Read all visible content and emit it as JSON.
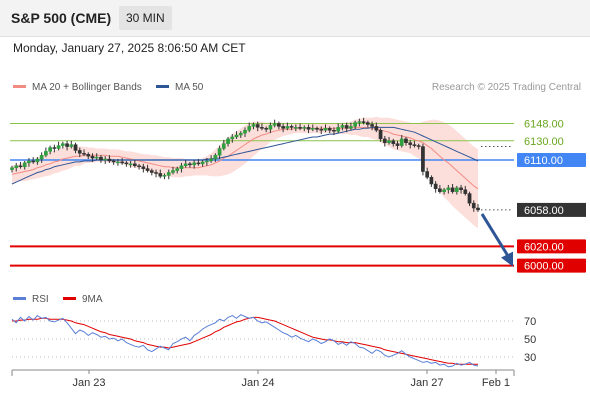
{
  "header": {
    "instrument": "S&P 500 (CME)",
    "timeframe": "30 MIN",
    "datetime": "Monday, January 27, 2025 8:06:50 AM CET"
  },
  "chart_data": [
    {
      "type": "candlestick",
      "legend": [
        {
          "label": "MA 20 + Bollinger Bands",
          "color": "#f28b82"
        },
        {
          "label": "MA 50",
          "color": "#2e5596"
        }
      ],
      "legend_placement": "top-left",
      "attribution": "Research © 2025 Trading Central",
      "levels": [
        {
          "value": 6148.0,
          "label": "6148.00",
          "type": "resistance",
          "color": "#8bc34a"
        },
        {
          "value": 6130.0,
          "label": "6130.00",
          "type": "resistance",
          "color": "#8bc34a"
        },
        {
          "value": 6110.0,
          "label": "6110.00",
          "type": "pivot",
          "color": "#4285f4"
        },
        {
          "value": 6058.0,
          "label": "6058.00",
          "type": "last",
          "color": "#333333"
        },
        {
          "value": 6020.0,
          "label": "6020.00",
          "type": "target",
          "color": "#e00000"
        },
        {
          "value": 6000.0,
          "label": "6000.00",
          "type": "target",
          "color": "#e00000"
        }
      ],
      "x_ticks": [
        "Jan 23",
        "Jan 24",
        "Jan 27",
        "Feb 1"
      ],
      "close": [
        6102,
        6104,
        6103,
        6107,
        6109,
        6108,
        6111,
        6115,
        6119,
        6123,
        6122,
        6125,
        6127,
        6124,
        6126,
        6120,
        6117,
        6116,
        6114,
        6112,
        6113,
        6110,
        6111,
        6109,
        6108,
        6108,
        6107,
        6106,
        6106,
        6104,
        6103,
        6101,
        6099,
        6097,
        6096,
        6093,
        6094,
        6097,
        6099,
        6101,
        6104,
        6106,
        6105,
        6107,
        6106,
        6108,
        6109,
        6111,
        6115,
        6122,
        6127,
        6132,
        6134,
        6136,
        6138,
        6141,
        6145,
        6147,
        6144,
        6143,
        6142,
        6146,
        6148,
        6145,
        6143,
        6145,
        6144,
        6144,
        6143,
        6144,
        6142,
        6143,
        6142,
        6141,
        6143,
        6141,
        6140,
        6144,
        6146,
        6143,
        6145,
        6149,
        6150,
        6149,
        6147,
        6145,
        6141,
        6132,
        6128,
        6130,
        6127,
        6125,
        6132,
        6128,
        6126,
        6125,
        6124,
        6098,
        6092,
        6085,
        6080,
        6077,
        6079,
        6081,
        6077,
        6081,
        6079,
        6075,
        6065,
        6060,
        6058
      ],
      "ma20": [
        6095,
        6096,
        6097,
        6098,
        6099,
        6100,
        6102,
        6103,
        6105,
        6106,
        6108,
        6109,
        6111,
        6112,
        6113,
        6114,
        6114,
        6115,
        6115,
        6115,
        6115,
        6115,
        6115,
        6114,
        6114,
        6114,
        6113,
        6112,
        6111,
        6110,
        6109,
        6108,
        6107,
        6106,
        6105,
        6104,
        6103,
        6103,
        6102,
        6102,
        6102,
        6102,
        6102,
        6102,
        6102,
        6103,
        6104,
        6105,
        6107,
        6109,
        6112,
        6114,
        6117,
        6120,
        6123,
        6126,
        6129,
        6132,
        6134,
        6136,
        6137,
        6139,
        6140,
        6141,
        6142,
        6142,
        6142,
        6143,
        6143,
        6143,
        6143,
        6143,
        6143,
        6143,
        6143,
        6143,
        6143,
        6143,
        6143,
        6143,
        6143,
        6144,
        6144,
        6144,
        6144,
        6143,
        6143,
        6141,
        6140,
        6139,
        6137,
        6136,
        6135,
        6134,
        6133,
        6131,
        6130,
        6128,
        6125,
        6122,
        6118,
        6114,
        6110,
        6107,
        6103,
        6099,
        6095,
        6091,
        6087,
        6083,
        6080
      ],
      "bb_width": [
        9,
        9,
        9,
        10,
        10,
        10,
        11,
        11,
        12,
        12,
        12,
        12,
        12,
        12,
        11,
        10,
        10,
        9,
        8,
        8,
        7,
        7,
        7,
        7,
        7,
        7,
        7,
        7,
        8,
        8,
        8,
        8,
        9,
        9,
        10,
        10,
        10,
        10,
        10,
        10,
        10,
        9,
        9,
        8,
        8,
        9,
        10,
        12,
        14,
        16,
        18,
        19,
        20,
        20,
        20,
        20,
        19,
        18,
        16,
        14,
        12,
        10,
        9,
        8,
        7,
        6,
        5,
        5,
        5,
        5,
        5,
        5,
        5,
        5,
        5,
        5,
        5,
        5,
        6,
        6,
        7,
        8,
        9,
        10,
        10,
        11,
        12,
        13,
        14,
        15,
        16,
        16,
        16,
        16,
        16,
        17,
        18,
        22,
        26,
        30,
        34,
        37,
        39,
        40,
        41,
        41,
        41,
        41,
        41,
        41,
        41
      ],
      "ma50": [
        6085,
        6087,
        6089,
        6091,
        6093,
        6095,
        6097,
        6098,
        6100,
        6101,
        6103,
        6104,
        6105,
        6106,
        6107,
        6108,
        6108,
        6109,
        6109,
        6109,
        6110,
        6110,
        6110,
        6110,
        6110,
        6110,
        6110,
        6110,
        6110,
        6110,
        6110,
        6110,
        6110,
        6110,
        6110,
        6110,
        6110,
        6110,
        6110,
        6110,
        6110,
        6110,
        6110,
        6110,
        6110,
        6110,
        6111,
        6111,
        6112,
        6112,
        6113,
        6114,
        6115,
        6116,
        6117,
        6118,
        6119,
        6120,
        6121,
        6122,
        6123,
        6124,
        6125,
        6126,
        6127,
        6128,
        6129,
        6130,
        6131,
        6132,
        6133,
        6134,
        6134,
        6135,
        6136,
        6137,
        6137,
        6138,
        6139,
        6140,
        6141,
        6142,
        6142,
        6143,
        6143,
        6144,
        6144,
        6144,
        6144,
        6144,
        6144,
        6143,
        6142,
        6141,
        6140,
        6139,
        6137,
        6135,
        6133,
        6131,
        6129,
        6127,
        6125,
        6123,
        6121,
        6119,
        6117,
        6115,
        6113,
        6111,
        6109
      ],
      "forecast_arrow": {
        "from": 6058.0,
        "to": 6000.0,
        "color": "#2e5596"
      }
    },
    {
      "type": "line",
      "legend": [
        {
          "label": "RSI",
          "color": "#5b7fd6"
        },
        {
          "label": "9MA",
          "color": "#e00000"
        }
      ],
      "y_ticks": [
        30,
        50,
        70
      ],
      "ylim": [
        15,
        85
      ],
      "series": [
        {
          "name": "RSI",
          "values": [
            72,
            68,
            74,
            70,
            75,
            71,
            76,
            73,
            74,
            70,
            69,
            71,
            73,
            68,
            62,
            56,
            60,
            58,
            54,
            57,
            55,
            52,
            53,
            50,
            51,
            48,
            50,
            46,
            44,
            42,
            41,
            43,
            38,
            36,
            39,
            42,
            40,
            38,
            45,
            47,
            50,
            52,
            48,
            54,
            57,
            61,
            64,
            66,
            68,
            72,
            70,
            74,
            76,
            73,
            77,
            75,
            73,
            74,
            70,
            68,
            69,
            66,
            63,
            60,
            57,
            55,
            52,
            54,
            51,
            49,
            47,
            50,
            48,
            45,
            47,
            50,
            48,
            44,
            46,
            43,
            47,
            45,
            41,
            40,
            37,
            34,
            38,
            36,
            32,
            30,
            32,
            34,
            37,
            33,
            30,
            28,
            26,
            24,
            25,
            23,
            24,
            21,
            22,
            19,
            20,
            23,
            21,
            22,
            24,
            21,
            20
          ]
        },
        {
          "name": "9MA",
          "values": [
            70,
            70,
            71,
            71,
            72,
            72,
            72,
            73,
            73,
            72,
            72,
            72,
            72,
            71,
            70,
            68,
            67,
            66,
            64,
            62,
            60,
            58,
            57,
            55,
            54,
            53,
            52,
            51,
            50,
            48,
            47,
            46,
            44,
            43,
            42,
            41,
            41,
            40,
            41,
            42,
            43,
            44,
            45,
            47,
            49,
            51,
            53,
            55,
            58,
            60,
            63,
            65,
            67,
            69,
            70,
            72,
            73,
            74,
            74,
            73,
            72,
            71,
            70,
            68,
            66,
            64,
            62,
            60,
            58,
            56,
            54,
            52,
            51,
            50,
            49,
            49,
            48,
            47,
            47,
            46,
            46,
            46,
            45,
            44,
            43,
            42,
            41,
            40,
            38,
            37,
            36,
            35,
            34,
            33,
            32,
            31,
            30,
            29,
            28,
            27,
            26,
            25,
            24,
            23,
            23,
            22,
            22,
            22,
            22,
            22,
            22
          ]
        }
      ],
      "legend_placement": "top-left"
    }
  ]
}
